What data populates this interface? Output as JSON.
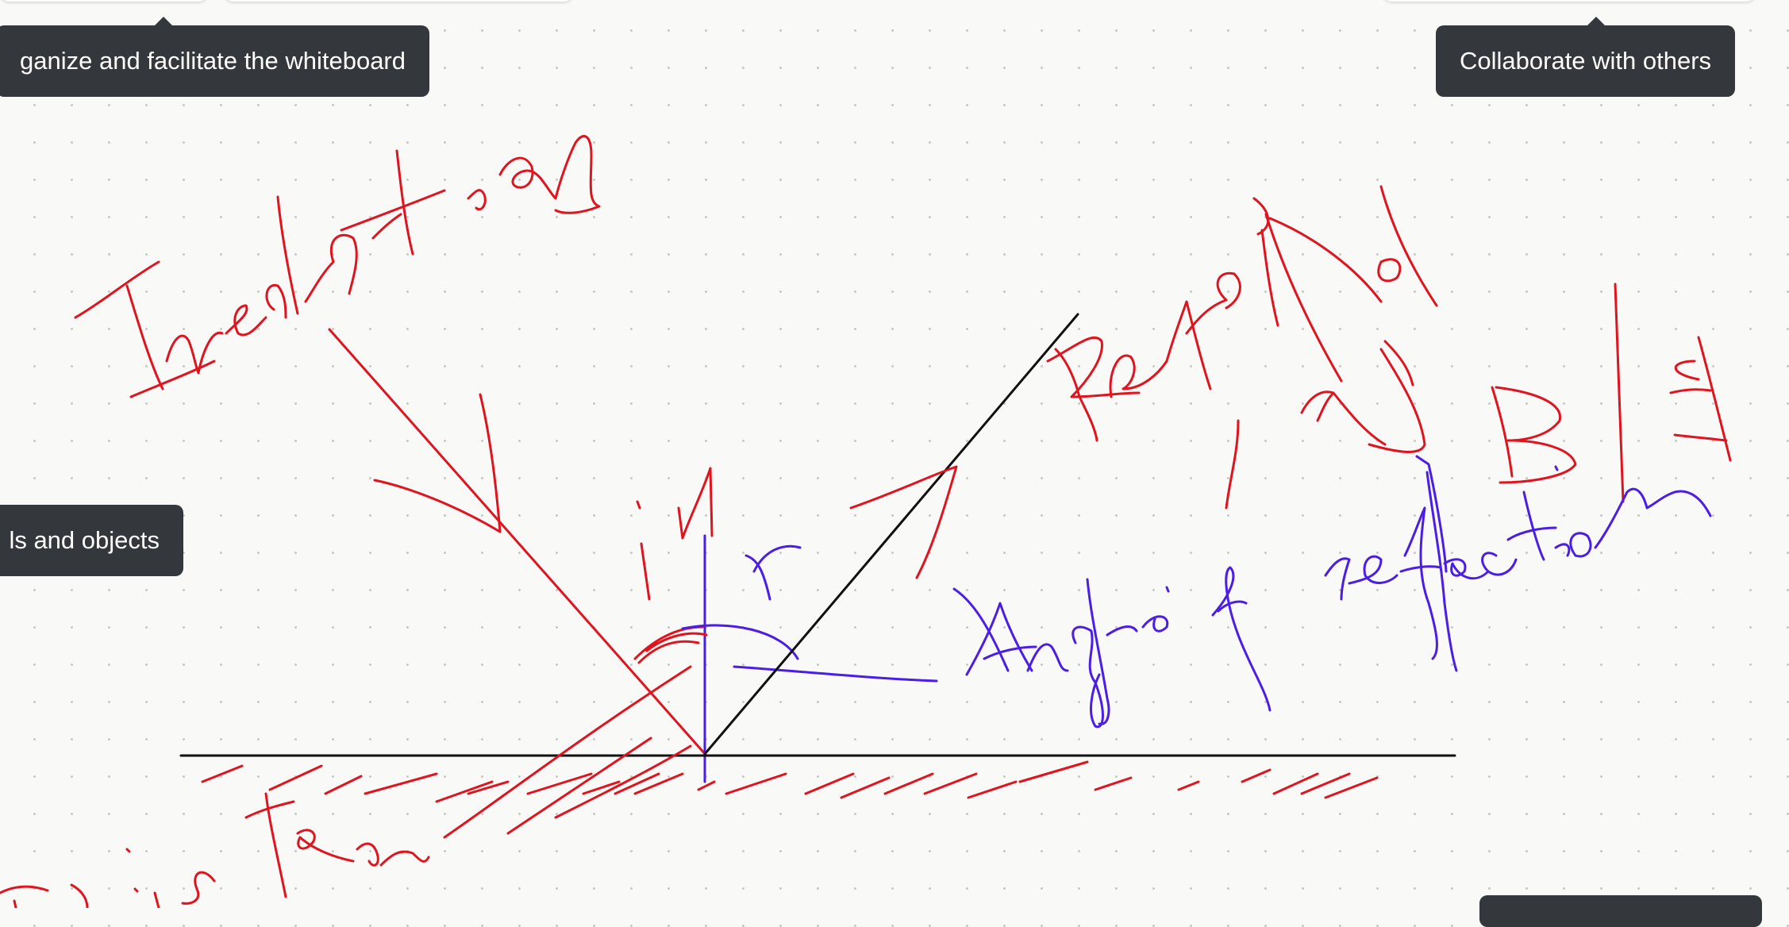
{
  "tooltips": {
    "organize": "ganize and facilitate the whiteboard",
    "collaborate": "Collaborate with others",
    "tools": "ls and objects"
  },
  "colors": {
    "background": "#f9f9f7",
    "grid_dot": "#c9c9c6",
    "tooltip_bg": "#34373b",
    "ink_red": "#e0141e",
    "ink_blue": "#4a1ee6",
    "ink_black": "#111111"
  },
  "strokes": [
    {
      "name": "incident-ray-handwriting",
      "color": "red",
      "content": "Incident ray"
    },
    {
      "name": "incident-ray-line",
      "color": "red",
      "content": "line"
    },
    {
      "name": "incident-ray-arrow",
      "color": "red",
      "content": "arrow"
    },
    {
      "name": "reflected-ray-handwriting",
      "color": "red",
      "content": "Reflected ray"
    },
    {
      "name": "reflected-ray-line",
      "color": "black",
      "content": "line"
    },
    {
      "name": "reflected-ray-arrow",
      "color": "red",
      "content": "arrow"
    },
    {
      "name": "mirror-surface-line",
      "color": "black",
      "content": "line"
    },
    {
      "name": "mirror-hatching",
      "color": "red",
      "content": "hatch marks"
    },
    {
      "name": "normal-line",
      "color": "blue",
      "content": "line"
    },
    {
      "name": "angle-i-label",
      "color": "red",
      "content": "i"
    },
    {
      "name": "angle-r-label",
      "color": "blue",
      "content": "r"
    },
    {
      "name": "angle-of-reflection-handwriting",
      "color": "blue",
      "content": "Angle of reflection"
    },
    {
      "name": "surface-handwriting",
      "color": "red",
      "content": "surface"
    },
    {
      "name": "bie-handwriting",
      "color": "red",
      "content": "B|E"
    }
  ]
}
